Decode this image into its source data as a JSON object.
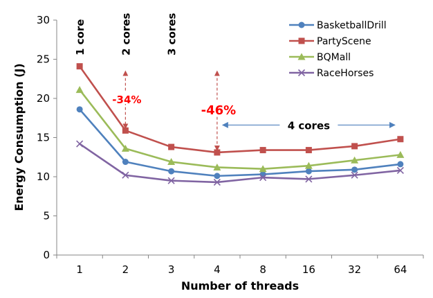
{
  "chart_data": {
    "type": "line",
    "xlabel": "Number of threads",
    "ylabel": "Energy Consumption (J)",
    "categories": [
      "1",
      "2",
      "3",
      "4",
      "8",
      "16",
      "32",
      "64"
    ],
    "ylim": [
      0,
      30
    ],
    "yticks": [
      0,
      5,
      10,
      15,
      20,
      25,
      30
    ],
    "grid": false,
    "legend_position": "top-right",
    "series": [
      {
        "name": "BasketballDrill",
        "color": "#4f81bd",
        "marker": "circle",
        "values": [
          18.6,
          11.9,
          10.7,
          10.1,
          10.3,
          10.7,
          10.9,
          11.6
        ]
      },
      {
        "name": "PartyScene",
        "color": "#c0504d",
        "marker": "square",
        "values": [
          24.1,
          15.9,
          13.8,
          13.1,
          13.4,
          13.4,
          13.9,
          14.8
        ]
      },
      {
        "name": "BQMall",
        "color": "#9bbb59",
        "marker": "triangle",
        "values": [
          21.1,
          13.6,
          11.9,
          11.2,
          11.0,
          11.4,
          12.1,
          12.8
        ]
      },
      {
        "name": "RaceHorses",
        "color": "#8064a2",
        "marker": "x",
        "values": [
          14.2,
          10.2,
          9.5,
          9.3,
          9.9,
          9.7,
          10.2,
          10.8
        ]
      }
    ],
    "annotations": {
      "core_labels": [
        {
          "text": "1 core",
          "category_index": 0
        },
        {
          "text": "2 cores",
          "category_index": 1
        },
        {
          "text": "3 cores",
          "category_index": 2
        }
      ],
      "reductions": [
        {
          "text": "-34%",
          "category_index": 1,
          "from": 24.1,
          "to": 15.9
        },
        {
          "text": "-46%",
          "category_index": 3,
          "from": 24.1,
          "to": 13.1
        }
      ],
      "range_label": {
        "text": "4 cores",
        "from_index": 3,
        "to_index": 7,
        "value": 16.6
      }
    }
  }
}
